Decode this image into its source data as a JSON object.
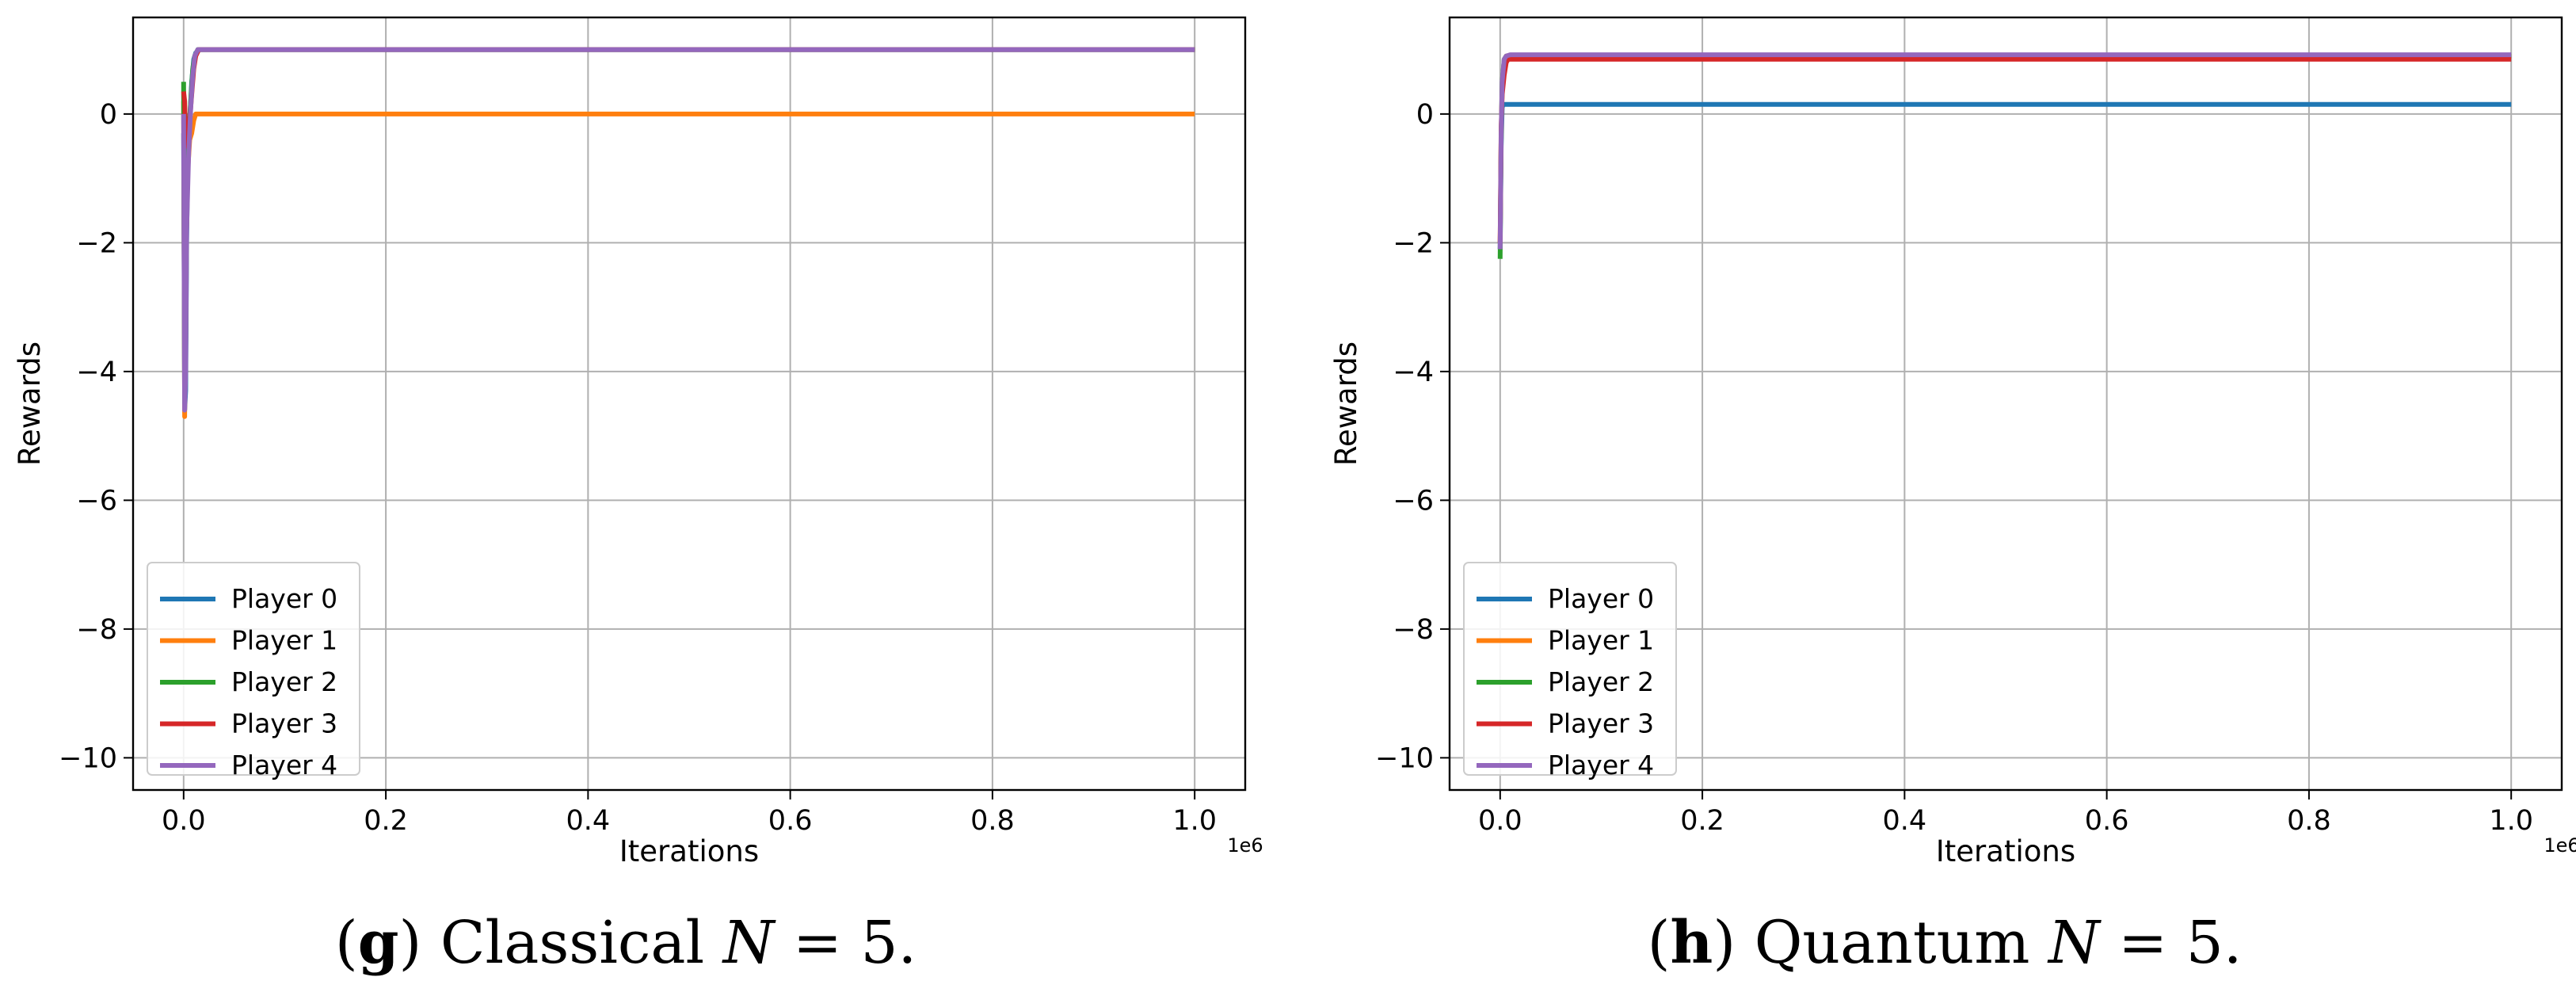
{
  "chart_data": [
    {
      "type": "line",
      "panel": "g",
      "title": "",
      "caption": {
        "letter": "g",
        "text": "Classical",
        "math_var": "N",
        "math_rest": " = 5."
      },
      "xlabel": "Iterations",
      "ylabel": "Rewards",
      "x_scale_label": "1e6",
      "xlim": [
        -0.05,
        1.05
      ],
      "ylim": [
        -10.5,
        1.5
      ],
      "xticks": [
        0.0,
        0.2,
        0.4,
        0.6,
        0.8,
        1.0
      ],
      "xtick_labels": [
        "0.0",
        "0.2",
        "0.4",
        "0.6",
        "0.8",
        "1.0"
      ],
      "yticks": [
        0,
        -2,
        -4,
        -6,
        -8,
        -10
      ],
      "ytick_labels": [
        "0",
        "−2",
        "−4",
        "−6",
        "−8",
        "−10"
      ],
      "grid": true,
      "legend_position": "lower-left",
      "series": [
        {
          "name": "Player 0",
          "color": "#1f77b4",
          "x": [
            0.0,
            0.001,
            0.002,
            0.003,
            0.004,
            0.006,
            0.008,
            0.01,
            0.012,
            0.016,
            0.03,
            1.0
          ],
          "y": [
            -0.3,
            -4.6,
            -4.3,
            -2.0,
            -0.8,
            -0.1,
            0.5,
            0.85,
            0.95,
            1.0,
            1.0,
            1.0
          ]
        },
        {
          "name": "Player 1",
          "color": "#ff7f0e",
          "x": [
            0.0,
            0.001,
            0.002,
            0.004,
            0.006,
            0.008,
            0.01,
            0.012,
            0.016,
            0.03,
            1.0
          ],
          "y": [
            0.2,
            -4.7,
            -2.5,
            -0.9,
            -0.4,
            -0.3,
            -0.1,
            0.0,
            0.0,
            0.0,
            0.0
          ]
        },
        {
          "name": "Player 2",
          "color": "#2ca02c",
          "x": [
            0.0,
            0.001,
            0.002,
            0.003,
            0.005,
            0.007,
            0.009,
            0.011,
            0.014,
            0.03,
            1.0
          ],
          "y": [
            0.5,
            -4.5,
            -3.8,
            -1.5,
            -0.3,
            0.2,
            0.7,
            0.9,
            1.0,
            1.0,
            1.0
          ]
        },
        {
          "name": "Player 3",
          "color": "#d62728",
          "x": [
            0.0,
            0.001,
            0.002,
            0.004,
            0.006,
            0.008,
            0.01,
            0.012,
            0.015,
            0.03,
            1.0
          ],
          "y": [
            0.35,
            0.2,
            -0.5,
            -0.3,
            -0.1,
            0.3,
            0.7,
            0.9,
            1.0,
            1.0,
            1.0
          ]
        },
        {
          "name": "Player 4",
          "color": "#9467bd",
          "x": [
            0.0,
            0.001,
            0.002,
            0.003,
            0.005,
            0.007,
            0.009,
            0.011,
            0.014,
            0.03,
            1.0
          ],
          "y": [
            0.0,
            -4.6,
            -4.0,
            -1.8,
            -0.6,
            0.1,
            0.6,
            0.9,
            1.0,
            1.0,
            1.0
          ]
        }
      ]
    },
    {
      "type": "line",
      "panel": "h",
      "title": "",
      "caption": {
        "letter": "h",
        "text": "Quantum",
        "math_var": "N",
        "math_rest": " = 5."
      },
      "xlabel": "Iterations",
      "ylabel": "Rewards",
      "x_scale_label": "1e6",
      "xlim": [
        -0.05,
        1.05
      ],
      "ylim": [
        -10.5,
        1.5
      ],
      "xticks": [
        0.0,
        0.2,
        0.4,
        0.6,
        0.8,
        1.0
      ],
      "xtick_labels": [
        "0.0",
        "0.2",
        "0.4",
        "0.6",
        "0.8",
        "1.0"
      ],
      "yticks": [
        0,
        -2,
        -4,
        -6,
        -8,
        -10
      ],
      "ytick_labels": [
        "0",
        "−2",
        "−4",
        "−6",
        "−8",
        "−10"
      ],
      "grid": true,
      "legend_position": "lower-left",
      "series": [
        {
          "name": "Player 0",
          "color": "#1f77b4",
          "x": [
            0.0,
            0.001,
            0.002,
            0.003,
            0.005,
            0.008,
            1.0
          ],
          "y": [
            -2.1,
            -0.5,
            0.1,
            0.15,
            0.15,
            0.15,
            0.15
          ]
        },
        {
          "name": "Player 1",
          "color": "#ff7f0e",
          "x": [
            0.0,
            0.001,
            0.002,
            0.004,
            0.006,
            0.01,
            1.0
          ],
          "y": [
            -2.0,
            -0.3,
            0.4,
            0.8,
            0.9,
            0.9,
            0.9
          ]
        },
        {
          "name": "Player 2",
          "color": "#2ca02c",
          "x": [
            0.0,
            0.001,
            0.002,
            0.004,
            0.006,
            0.01,
            1.0
          ],
          "y": [
            -2.25,
            -0.4,
            0.5,
            0.85,
            0.9,
            0.9,
            0.9
          ]
        },
        {
          "name": "Player 3",
          "color": "#d62728",
          "x": [
            0.0,
            0.001,
            0.002,
            0.004,
            0.006,
            0.008,
            0.012,
            1.0
          ],
          "y": [
            -2.0,
            -0.2,
            0.3,
            0.6,
            0.8,
            0.85,
            0.85,
            0.85
          ]
        },
        {
          "name": "Player 4",
          "color": "#9467bd",
          "x": [
            0.0,
            0.001,
            0.002,
            0.004,
            0.006,
            0.01,
            1.0
          ],
          "y": [
            -2.1,
            -0.3,
            0.5,
            0.85,
            0.9,
            0.92,
            0.92
          ]
        }
      ]
    }
  ]
}
